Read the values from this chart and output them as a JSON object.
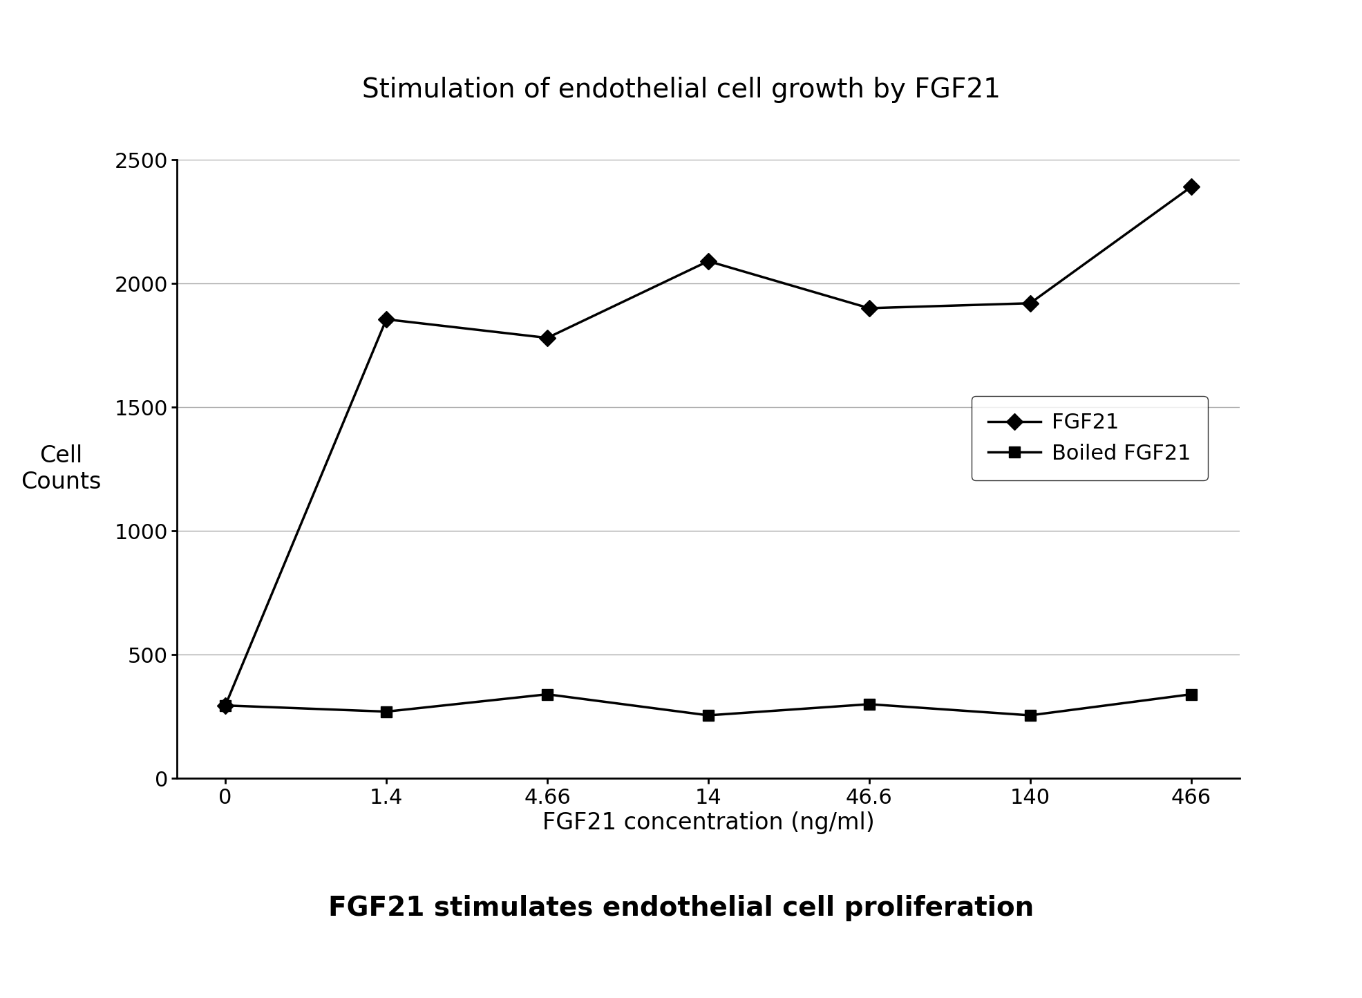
{
  "title": "Stimulation of endothelial cell growth by FGF21",
  "subtitle": "FGF21 stimulates endothelial cell proliferation",
  "xlabel": "FGF21 concentration (ng/ml)",
  "ylabel": "Cell\nCounts",
  "x_labels": [
    "0",
    "1.4",
    "4.66",
    "14",
    "46.6",
    "140",
    "466"
  ],
  "x_positions": [
    0,
    1,
    2,
    3,
    4,
    5,
    6
  ],
  "fgf21_values": [
    295,
    1855,
    1780,
    2090,
    1900,
    1920,
    2390
  ],
  "boiled_fgf21_values": [
    295,
    270,
    340,
    255,
    300,
    255,
    340
  ],
  "line_color": "#000000",
  "marker_fgf21": "D",
  "marker_boiled": "s",
  "ylim": [
    0,
    2500
  ],
  "yticks": [
    0,
    500,
    1000,
    1500,
    2000,
    2500
  ],
  "title_fontsize": 28,
  "label_fontsize": 24,
  "tick_fontsize": 22,
  "legend_fontsize": 22,
  "subtitle_fontsize": 28,
  "background_color": "#ffffff"
}
